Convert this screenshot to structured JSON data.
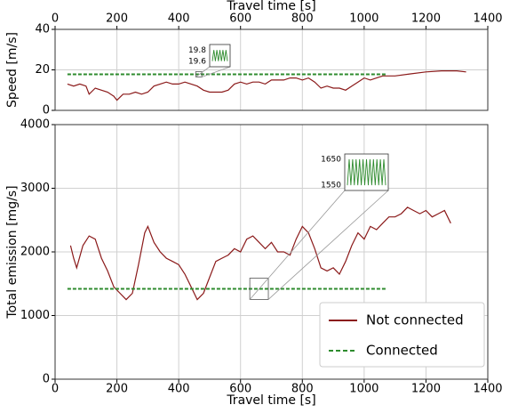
{
  "chart_data": [
    {
      "type": "line",
      "xlabel": "Travel time [s]",
      "ylabel": "Speed [m/s]",
      "xaxis_position": "top",
      "xlim": [
        0,
        1400
      ],
      "xticks": [
        0,
        200,
        400,
        600,
        800,
        1000,
        1200,
        1400
      ],
      "ylim": [
        0,
        40
      ],
      "yticks": [
        0,
        20,
        40
      ],
      "grid": true,
      "series": [
        {
          "name": "Not connected",
          "color": "#8b1a1a",
          "style": "solid",
          "x": [
            40,
            60,
            80,
            100,
            110,
            130,
            150,
            170,
            190,
            200,
            220,
            240,
            260,
            280,
            300,
            320,
            340,
            360,
            380,
            400,
            420,
            440,
            460,
            480,
            500,
            520,
            540,
            560,
            580,
            600,
            620,
            640,
            660,
            680,
            700,
            720,
            740,
            760,
            780,
            800,
            820,
            840,
            860,
            880,
            900,
            920,
            940,
            960,
            980,
            1000,
            1020,
            1040,
            1060,
            1080,
            1100,
            1150,
            1200,
            1250,
            1300,
            1330
          ],
          "values": [
            13,
            12,
            13,
            12,
            8,
            11,
            10,
            9,
            7,
            5,
            8,
            8,
            9,
            8,
            9,
            12,
            13,
            14,
            13,
            13,
            14,
            13,
            12,
            10,
            9,
            9,
            9,
            10,
            13,
            14,
            13,
            14,
            14,
            13,
            15,
            15,
            15,
            16,
            16,
            15,
            16,
            14,
            11,
            12,
            11,
            11,
            10,
            12,
            14,
            16,
            15,
            16,
            17,
            17,
            17,
            18,
            19,
            19.5,
            19.5,
            19
          ]
        },
        {
          "name": "Connected",
          "color": "#2e8b2e",
          "style": "dashed",
          "x": [
            40,
            1070
          ],
          "values": [
            17.8,
            17.8
          ]
        }
      ],
      "inset": {
        "ylim": [
          19.5,
          19.9
        ],
        "yticks": [
          19.6,
          19.8
        ]
      }
    },
    {
      "type": "line",
      "xlabel": "Travel time [s]",
      "ylabel": "Total emission [mg/s]",
      "xaxis_position": "bottom",
      "xlim": [
        0,
        1400
      ],
      "xticks": [
        0,
        200,
        400,
        600,
        800,
        1000,
        1200,
        1400
      ],
      "ylim": [
        0,
        4000
      ],
      "yticks": [
        0,
        1000,
        2000,
        3000,
        4000
      ],
      "grid": true,
      "legend": "lower right",
      "series": [
        {
          "name": "Not connected",
          "color": "#8b1a1a",
          "style": "solid",
          "x": [
            50,
            60,
            70,
            90,
            110,
            130,
            150,
            170,
            190,
            210,
            230,
            250,
            270,
            290,
            300,
            320,
            340,
            360,
            380,
            400,
            420,
            440,
            460,
            480,
            500,
            520,
            540,
            560,
            580,
            600,
            620,
            640,
            660,
            680,
            700,
            720,
            740,
            760,
            780,
            800,
            820,
            840,
            860,
            880,
            900,
            920,
            940,
            960,
            980,
            1000,
            1020,
            1040,
            1060,
            1080,
            1100,
            1120,
            1140,
            1160,
            1180,
            1200,
            1220,
            1240,
            1260,
            1280
          ],
          "values": [
            2100,
            1900,
            1750,
            2100,
            2250,
            2200,
            1900,
            1700,
            1450,
            1350,
            1250,
            1350,
            1800,
            2300,
            2400,
            2150,
            2000,
            1900,
            1850,
            1800,
            1650,
            1450,
            1250,
            1350,
            1600,
            1850,
            1900,
            1950,
            2050,
            2000,
            2200,
            2250,
            2150,
            2050,
            2150,
            2000,
            2000,
            1950,
            2200,
            2400,
            2300,
            2050,
            1750,
            1700,
            1750,
            1650,
            1850,
            2100,
            2300,
            2200,
            2400,
            2350,
            2450,
            2550,
            2550,
            2600,
            2700,
            2650,
            2600,
            2650,
            2550,
            2600,
            2650,
            2450
          ]
        },
        {
          "name": "Connected",
          "color": "#2e8b2e",
          "style": "dashed",
          "x": [
            40,
            1070
          ],
          "values": [
            1420,
            1420
          ]
        }
      ],
      "inset": {
        "ylim": [
          1530,
          1670
        ],
        "yticks": [
          1550,
          1650
        ]
      }
    }
  ]
}
